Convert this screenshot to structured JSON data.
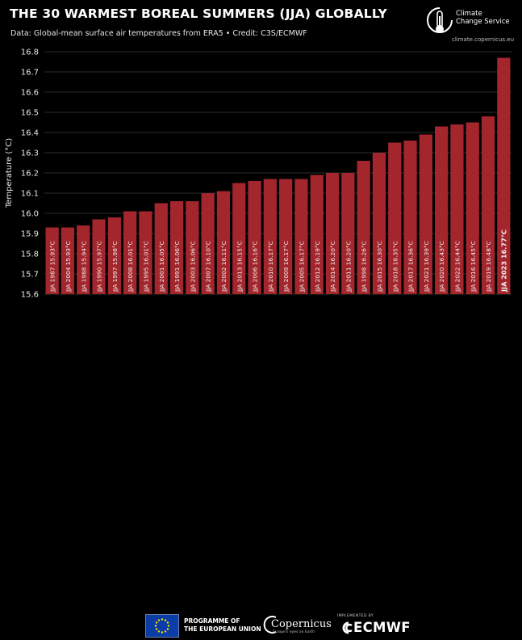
{
  "header": {
    "title": "THE 30 WARMEST BOREAL SUMMERS (JJA) GLOBALLY",
    "subtitle": "Data: Global-mean surface air temperatures from ERA5 • Credit: C3S/ECMWF"
  },
  "logo": {
    "brand": "Climate\nChange Service",
    "url": "climate.copernicus.eu"
  },
  "footer": {
    "eu_text": "PROGRAMME OF\nTHE EUROPEAN UNION",
    "copernicus": "Copernicus",
    "copernicus_tagline": "Europe's eyes on Earth",
    "implemented_by": "IMPLEMENTED BY",
    "ecmwf": "ECMWF"
  },
  "colors": {
    "background": "#000000",
    "bar": "#a3262d",
    "grid": "#3a3a3a",
    "text": "#ffffff"
  },
  "chart_data": {
    "type": "bar",
    "title": "THE 30 WARMEST BOREAL SUMMERS (JJA) GLOBALLY",
    "ylabel": "Temperature (°C)",
    "ylim": [
      15.6,
      16.8
    ],
    "yticks": [
      "15.6",
      "15.7",
      "15.8",
      "15.9",
      "16.0",
      "16.1",
      "16.2",
      "16.3",
      "16.4",
      "16.5",
      "16.6",
      "16.7",
      "16.8"
    ],
    "grid": true,
    "categories": [
      "JJA 1987",
      "JJA 2004",
      "JJA 1988",
      "JJA 1990",
      "JJA 1997",
      "JJA 2008",
      "JJA 1995",
      "JJA 2001",
      "JJA 1991",
      "JJA 2003",
      "JJA 2007",
      "JJA 2002",
      "JJA 2013",
      "JJA 2006",
      "JJA 2010",
      "JJA 2009",
      "JJA 2005",
      "JJA 2012",
      "JJA 2014",
      "JJA 2011",
      "JJA 1998",
      "JJA 2015",
      "JJA 2018",
      "JJA 2017",
      "JJA 2021",
      "JJA 2020",
      "JJA 2022",
      "JJA 2016",
      "JJA 2019",
      "JJA 2023"
    ],
    "values": [
      15.93,
      15.93,
      15.94,
      15.97,
      15.98,
      16.01,
      16.01,
      16.05,
      16.06,
      16.06,
      16.1,
      16.11,
      16.15,
      16.16,
      16.17,
      16.17,
      16.17,
      16.19,
      16.2,
      16.2,
      16.26,
      16.3,
      16.35,
      16.36,
      16.39,
      16.43,
      16.44,
      16.45,
      16.48,
      16.77
    ],
    "labels": [
      "JJA 1987  15.93°C",
      "JJA 2004  15.93°C",
      "JJA 1988  15.94°C",
      "JJA 1990  15.97°C",
      "JJA 1997  15.98°C",
      "JJA 2008  16.01°C",
      "JJA 1995  16.01°C",
      "JJA 2001  16.05°C",
      "JJA 1991  16.06°C",
      "JJA 2003  16.06°C",
      "JJA 2007  16.10°C",
      "JJA 2002  16.11°C",
      "JJA 2013  16.15°C",
      "JJA 2006  16.16°C",
      "JJA 2010  16.17°C",
      "JJA 2009  16.17°C",
      "JJA 2005  16.17°C",
      "JJA 2012  16.19°C",
      "JJA 2014  16.20°C",
      "JJA 2011  16.20°C",
      "JJA 1998  16.26°C",
      "JJA 2015  16.30°C",
      "JJA 2018  16.35°C",
      "JJA 2017  16.36°C",
      "JJA 2021  16.39°C",
      "JJA 2020  16.43°C",
      "JJA 2022  16.44°C",
      "JJA 2016  16.45°C",
      "JJA 2019  16.48°C",
      "JJA 2023  16.77°C"
    ],
    "highlight_label": "JJA 2023  16.77°C"
  }
}
